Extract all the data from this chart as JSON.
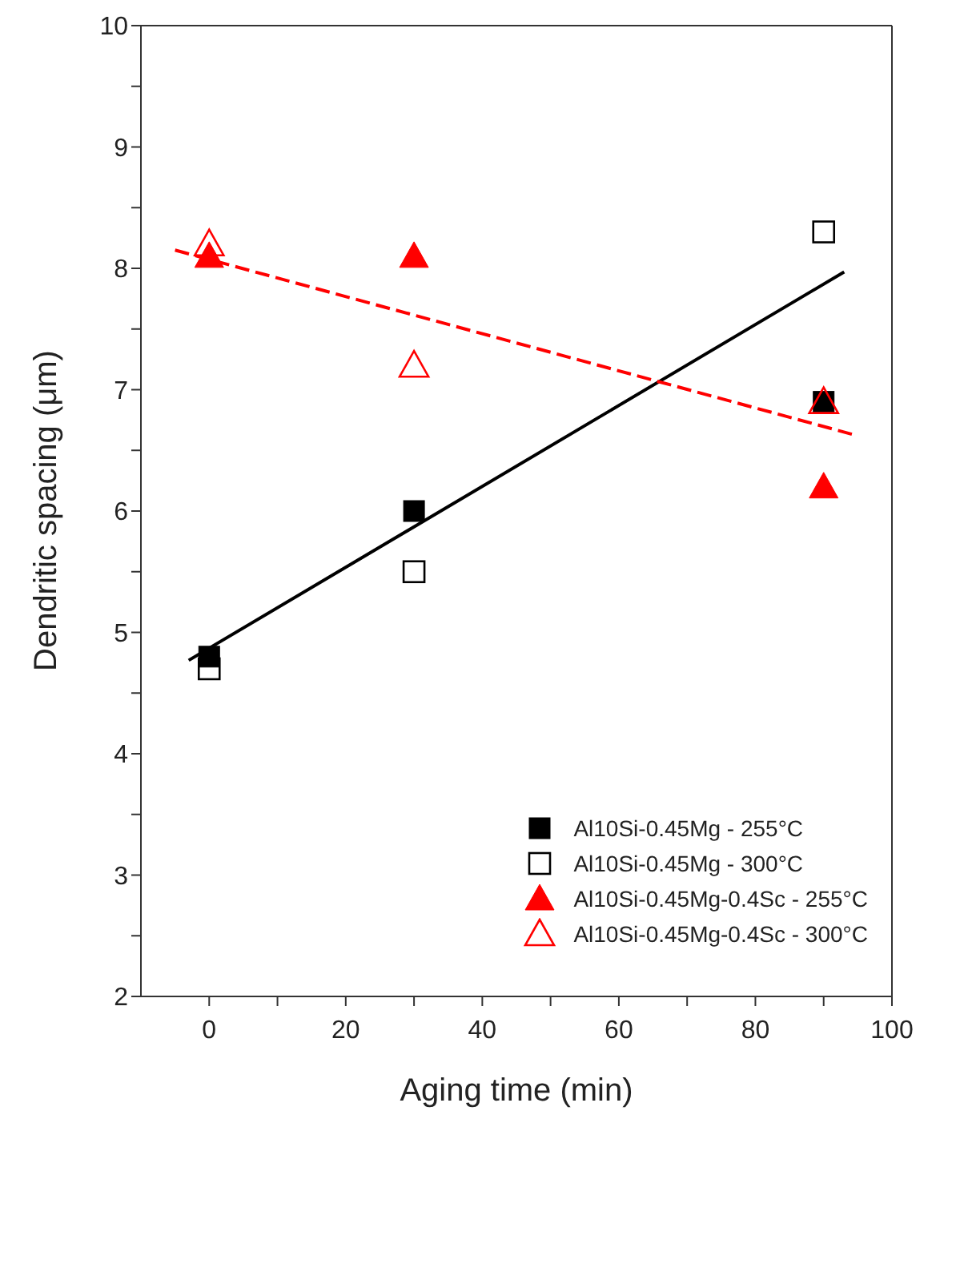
{
  "chart_data": {
    "type": "scatter",
    "xlabel": "Aging time (min)",
    "ylabel": "Dendritic spacing (μm)",
    "xlim": [
      -10,
      100
    ],
    "xticks": [
      0,
      {
        "value": 10,
        "label": null
      },
      20,
      {
        "value": 30,
        "label": null
      },
      40,
      {
        "value": 50,
        "label": null
      },
      60,
      {
        "value": 70,
        "label": null
      },
      80,
      {
        "value": 90,
        "label": null
      },
      100
    ],
    "ylim": [
      2,
      10
    ],
    "yticks": [
      2,
      {
        "value": 2.5,
        "label": null
      },
      3,
      {
        "value": 3.5,
        "label": null
      },
      4,
      {
        "value": 4.5,
        "label": null
      },
      5,
      {
        "value": 5.5,
        "label": null
      },
      6,
      {
        "value": 6.5,
        "label": null
      },
      7,
      {
        "value": 7.5,
        "label": null
      },
      8,
      {
        "value": 8.5,
        "label": null
      },
      9,
      {
        "value": 9.5,
        "label": null
      },
      10
    ],
    "grid": false,
    "legend": "bottom right",
    "series": [
      {
        "name": "Al10Si-0.45Mg - 255°C",
        "color": "#000000",
        "marker": "square",
        "x": [
          0,
          30,
          90
        ],
        "values": [
          4.8,
          6.0,
          6.9
        ]
      },
      {
        "name": "Al10Si-0.45Mg - 300°C",
        "color": "#000000",
        "marker": "square",
        "x": [
          0,
          30,
          90
        ],
        "values": [
          4.7,
          5.5,
          8.3
        ]
      },
      {
        "name": "Al10Si-0.45Mg-0.4Sc - 255°C",
        "color": "#ff0000",
        "marker": "triangle",
        "x": [
          0,
          30,
          90
        ],
        "values": [
          8.1,
          8.1,
          6.2
        ]
      },
      {
        "name": "Al10Si-0.45Mg-0.4Sc - 300°C",
        "color": "#ff0000",
        "marker": "triangle",
        "x": [
          0,
          30,
          90
        ],
        "values": [
          8.2,
          7.2,
          6.9
        ]
      },
      {
        "type": "line",
        "color": "#000000",
        "line_style": "solid",
        "x": [
          -3,
          93
        ],
        "values": [
          4.77,
          7.97
        ]
      },
      {
        "type": "line",
        "color": "#ff0000",
        "line_style": "dashed",
        "x": [
          -5,
          95
        ],
        "values": [
          8.15,
          6.62
        ]
      }
    ]
  }
}
